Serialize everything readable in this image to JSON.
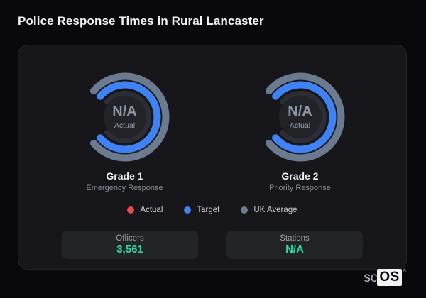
{
  "title": "Police Response Times in Rural Lancaster",
  "card": {
    "gauges": [
      {
        "name": "Grade 1",
        "subtitle": "Emergency Response",
        "center_value": "N/A",
        "center_label": "Actual"
      },
      {
        "name": "Grade 2",
        "subtitle": "Priority Response",
        "center_value": "N/A",
        "center_label": "Actual"
      }
    ],
    "legend": [
      {
        "label": "Actual",
        "color": "#e84b4b"
      },
      {
        "label": "Target",
        "color": "#3f82f6"
      },
      {
        "label": "UK Average",
        "color": "#6b7a8f"
      }
    ],
    "stats": [
      {
        "label": "Officers",
        "value": "3,561"
      },
      {
        "label": "Stations",
        "value": "N/A"
      }
    ]
  },
  "chart_data": [
    {
      "type": "ring-gauge",
      "title": "Grade 1",
      "subtitle": "Emergency Response",
      "center_value": "N/A",
      "center_label": "Actual",
      "arc_start_deg": 140,
      "arc_span_deg": 280,
      "gap_position": "left",
      "rings": [
        {
          "series": "UK Average",
          "color": "#6b7a8f",
          "shown_fraction": 1,
          "value": null
        },
        {
          "series": "Target",
          "color": "#3f82f6",
          "shown_fraction": 1,
          "value": null
        },
        {
          "series": "Actual",
          "color": "#e84b4b",
          "shown_fraction": 0,
          "value": "N/A"
        }
      ]
    },
    {
      "type": "ring-gauge",
      "title": "Grade 2",
      "subtitle": "Priority Response",
      "center_value": "N/A",
      "center_label": "Actual",
      "arc_start_deg": 140,
      "arc_span_deg": 280,
      "gap_position": "left",
      "rings": [
        {
          "series": "UK Average",
          "color": "#6b7a8f",
          "shown_fraction": 1,
          "value": null
        },
        {
          "series": "Target",
          "color": "#3f82f6",
          "shown_fraction": 1,
          "value": null
        },
        {
          "series": "Actual",
          "color": "#e84b4b",
          "shown_fraction": 0,
          "value": "N/A"
        }
      ]
    }
  ],
  "colors": {
    "actual": "#e84b4b",
    "target": "#3f82f6",
    "uk_average": "#6b7a8f",
    "ring_track": "#2b2e35",
    "gauge_center_fill": "#222329",
    "stat_value": "#2cd9a2"
  },
  "footer": {
    "logo_prefix": "sc",
    "logo_suffix": "OS",
    "registered": "®"
  }
}
